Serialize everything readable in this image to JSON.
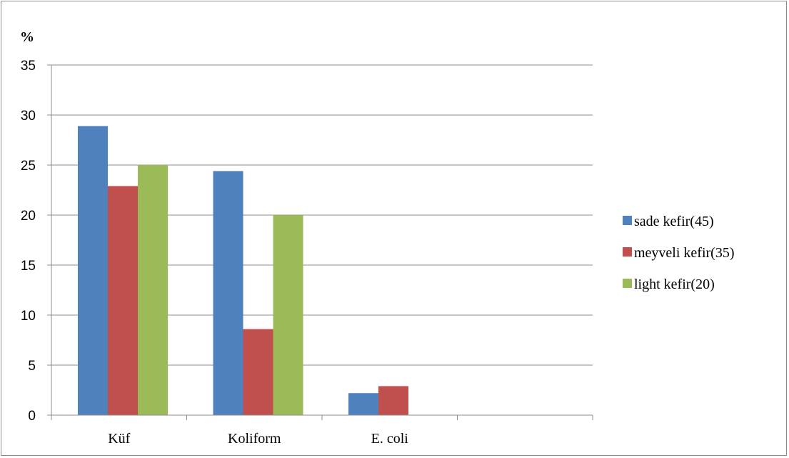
{
  "chart_data": {
    "type": "bar",
    "ylabel": "%",
    "xlabel": "",
    "categories": [
      "Küf",
      "Koliform",
      "E. coli",
      ""
    ],
    "series": [
      {
        "name": "sade kefir(45)",
        "color": "#4f81bd",
        "values": [
          28.9,
          24.4,
          2.2,
          null
        ]
      },
      {
        "name": "meyveli kefir(35)",
        "color": "#c0504d",
        "values": [
          22.9,
          8.6,
          2.9,
          null
        ]
      },
      {
        "name": "light kefir(20)",
        "color": "#9bbb59",
        "values": [
          25.0,
          20.0,
          null,
          null
        ]
      }
    ],
    "ylim": [
      0,
      35
    ],
    "yticks": [
      "0",
      "5",
      "10",
      "15",
      "20",
      "25",
      "30",
      "35"
    ],
    "grid": true,
    "legend_position": "right"
  }
}
